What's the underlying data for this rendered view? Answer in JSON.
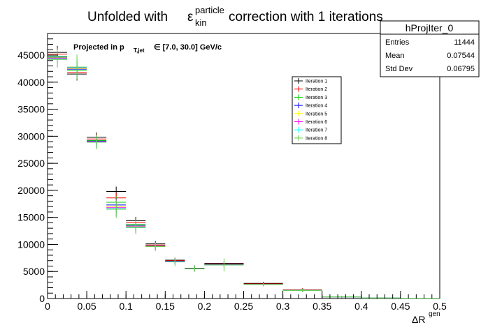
{
  "chart_data": {
    "type": "histogram",
    "title": {
      "prefix": "Unfolded with",
      "epsilon": "ε",
      "sup": "particle",
      "sub": "kin",
      "suffix": "correction with 1 iterations"
    },
    "annotation": {
      "prefix": "Projected in p",
      "sub": "T,jet",
      "suffix": "∈ [7.0, 30.0] GeV/c"
    },
    "xlabel": {
      "main": "ΔR",
      "sup": "gen"
    },
    "ylabel": "",
    "xlim": [
      0,
      0.5
    ],
    "ylim": [
      0,
      49000
    ],
    "x_ticks": [
      "0",
      "0.05",
      "0.1",
      "0.15",
      "0.2",
      "0.25",
      "0.3",
      "0.35",
      "0.4",
      "0.45",
      "0.5"
    ],
    "x_tick_values": [
      0,
      0.05,
      0.1,
      0.15,
      0.2,
      0.25,
      0.3,
      0.35,
      0.4,
      0.45,
      0.5
    ],
    "y_ticks": [
      "0",
      "5000",
      "10000",
      "15000",
      "20000",
      "25000",
      "30000",
      "35000",
      "40000",
      "45000"
    ],
    "y_tick_values": [
      0,
      5000,
      10000,
      15000,
      20000,
      25000,
      30000,
      35000,
      40000,
      45000
    ],
    "bin_edges": [
      0,
      0.025,
      0.05,
      0.075,
      0.1,
      0.125,
      0.15,
      0.175,
      0.2,
      0.25,
      0.3,
      0.35,
      0.4,
      0.45,
      0.5
    ],
    "series": [
      {
        "name": "Iteration 1",
        "color": "#000000",
        "values": [
          45500,
          41500,
          29800,
          19800,
          14400,
          10100,
          7100,
          5600,
          6500,
          2800,
          1600,
          300,
          100,
          50
        ],
        "errors": [
          1200,
          1200,
          900,
          900,
          700,
          500,
          400,
          500,
          400,
          300,
          300,
          200,
          100,
          50
        ]
      },
      {
        "name": "Iteration 2",
        "color": "#ff0000",
        "values": [
          45200,
          41800,
          29500,
          18600,
          14000,
          9900,
          7000,
          5500,
          6400,
          2700,
          1600,
          300,
          100,
          50
        ],
        "errors": [
          1200,
          1200,
          900,
          1000,
          800,
          500,
          400,
          500,
          400,
          300,
          300,
          200,
          100,
          50
        ]
      },
      {
        "name": "Iteration 3",
        "color": "#00cc00",
        "values": [
          44800,
          42200,
          29200,
          17800,
          13700,
          9800,
          6900,
          5500,
          6300,
          2600,
          1500,
          300,
          100,
          50
        ],
        "errors": [
          1300,
          1300,
          1000,
          1100,
          900,
          600,
          500,
          500,
          500,
          300,
          300,
          200,
          100,
          50
        ]
      },
      {
        "name": "Iteration 4",
        "color": "#0000ff",
        "values": [
          44600,
          42400,
          29100,
          17300,
          13500,
          9700,
          6900,
          5500,
          6300,
          2600,
          1500,
          300,
          100,
          50
        ],
        "errors": [
          1300,
          1400,
          1000,
          1200,
          900,
          600,
          500,
          500,
          500,
          300,
          300,
          200,
          100,
          50
        ]
      },
      {
        "name": "Iteration 5",
        "color": "#ffff00",
        "values": [
          44500,
          42500,
          29000,
          17000,
          13400,
          9700,
          6800,
          5500,
          6200,
          2600,
          1500,
          300,
          100,
          50
        ],
        "errors": [
          1400,
          1400,
          1100,
          1300,
          1000,
          600,
          500,
          500,
          500,
          300,
          300,
          200,
          100,
          50
        ]
      },
      {
        "name": "Iteration 6",
        "color": "#ff00ff",
        "values": [
          44400,
          42600,
          29000,
          16800,
          13300,
          9700,
          6800,
          5500,
          6200,
          2600,
          1500,
          300,
          100,
          50
        ],
        "errors": [
          1400,
          1500,
          1100,
          1400,
          1000,
          700,
          500,
          500,
          500,
          300,
          300,
          200,
          100,
          50
        ]
      },
      {
        "name": "Iteration 7",
        "color": "#00ffff",
        "values": [
          44300,
          42700,
          28900,
          16600,
          13200,
          9600,
          6800,
          5500,
          6200,
          2600,
          1500,
          300,
          100,
          50
        ],
        "errors": [
          1500,
          1500,
          1200,
          1500,
          1100,
          700,
          500,
          500,
          500,
          300,
          300,
          200,
          100,
          50
        ]
      },
      {
        "name": "Iteration 8",
        "color": "#66cc44",
        "values": [
          44200,
          42800,
          28900,
          16500,
          13100,
          9600,
          6800,
          5500,
          6200,
          2600,
          1500,
          300,
          100,
          50
        ],
        "errors": [
          1500,
          2300,
          1300,
          1600,
          1200,
          800,
          800,
          500,
          1200,
          300,
          300,
          200,
          100,
          50
        ]
      }
    ],
    "legend_placement": "upper-middle-right",
    "grid": false
  },
  "stats_box": {
    "title": "hProjIter_0",
    "rows": [
      {
        "label": "Entries",
        "value": "11444"
      },
      {
        "label": "Mean",
        "value": "0.07544"
      },
      {
        "label": "Std Dev",
        "value": "0.06795"
      }
    ]
  }
}
